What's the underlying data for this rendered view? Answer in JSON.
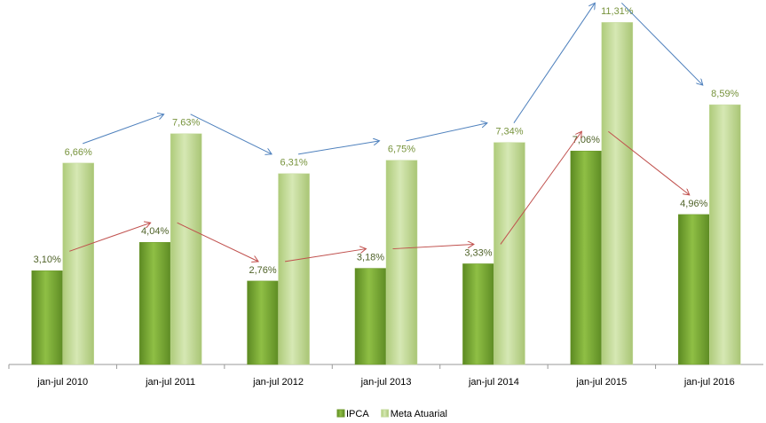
{
  "chart_data": {
    "type": "bar",
    "categories": [
      "jan-jul 2010",
      "jan-jul 2011",
      "jan-jul 2012",
      "jan-jul 2013",
      "jan-jul 2014",
      "jan-jul 2015",
      "jan-jul 2016"
    ],
    "series": [
      {
        "name": "IPCA",
        "color": "#6f9a2e",
        "label_color": "#4f6228",
        "arrow_color": "#c0504d",
        "values": [
          3.1,
          4.04,
          2.76,
          3.18,
          3.33,
          7.06,
          4.96
        ],
        "value_labels": [
          "3,10%",
          "4,04%",
          "2,76%",
          "3,18%",
          "3,33%",
          "7,06%",
          "4,96%"
        ]
      },
      {
        "name": "Meta Atuarial",
        "color": "#c3d99a",
        "label_color": "#77933c",
        "arrow_color": "#4f81bd",
        "values": [
          6.66,
          7.63,
          6.31,
          6.75,
          7.34,
          11.31,
          8.59
        ],
        "value_labels": [
          "6,66%",
          "7,63%",
          "6,31%",
          "6,75%",
          "7,34%",
          "11,31%",
          "8,59%"
        ]
      }
    ]
  }
}
